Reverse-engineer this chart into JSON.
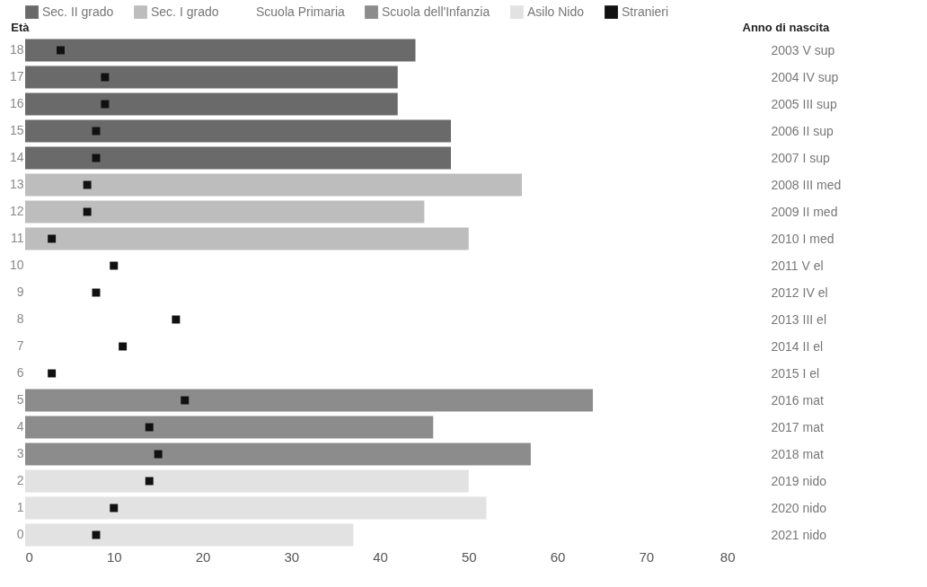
{
  "chart_data": {
    "type": "bar",
    "orientation": "horizontal",
    "ylabel": "Età",
    "y2label": "Anno di nascita",
    "categories": [
      "18",
      "17",
      "16",
      "15",
      "14",
      "13",
      "12",
      "11",
      "10",
      "9",
      "8",
      "7",
      "6",
      "5",
      "4",
      "3",
      "2",
      "1",
      "0"
    ],
    "y2_categories": [
      "2003 V sup",
      "2004 IV sup",
      "2005 III sup",
      "2006 II sup",
      "2007 I sup",
      "2008 III med",
      "2009 II med",
      "2010 I med",
      "2011 V el",
      "2012 IV el",
      "2013 III el",
      "2014 II el",
      "2015 I el",
      "2016 mat",
      "2017 mat",
      "2018 mat",
      "2019 nido",
      "2020 nido",
      "2021 nido"
    ],
    "series": [
      {
        "name": "Sec. II grado",
        "color": "#6a6a6a",
        "values": [
          44,
          42,
          42,
          48,
          48,
          null,
          null,
          null,
          null,
          null,
          null,
          null,
          null,
          null,
          null,
          null,
          null,
          null,
          null
        ]
      },
      {
        "name": "Sec. I grado",
        "color": "#bdbdbd",
        "values": [
          null,
          null,
          null,
          null,
          null,
          56,
          45,
          50,
          null,
          null,
          null,
          null,
          null,
          null,
          null,
          null,
          null,
          null,
          null
        ]
      },
      {
        "name": "Scuola Primaria",
        "values": [
          null,
          null,
          null,
          null,
          null,
          null,
          null,
          null,
          null,
          null,
          null,
          null,
          null,
          null,
          null,
          null,
          null,
          null,
          null
        ]
      },
      {
        "name": "Scuola dell'Infanzia",
        "color": "#8c8c8c",
        "values": [
          null,
          null,
          null,
          null,
          null,
          null,
          null,
          null,
          null,
          null,
          null,
          null,
          null,
          64,
          46,
          57,
          null,
          null,
          null
        ]
      },
      {
        "name": "Asilo Nido",
        "color": "#e2e2e2",
        "values": [
          null,
          null,
          null,
          null,
          null,
          null,
          null,
          null,
          null,
          null,
          null,
          null,
          null,
          null,
          null,
          null,
          50,
          52,
          37
        ]
      },
      {
        "name": "Stranieri",
        "color": "#111111",
        "type": "scatter",
        "values": [
          4,
          9,
          9,
          8,
          8,
          7,
          7,
          3,
          10,
          8,
          17,
          11,
          3,
          18,
          14,
          15,
          14,
          10,
          8
        ]
      }
    ],
    "xlim": [
      0,
      80
    ],
    "xticks": [
      0,
      10,
      20,
      30,
      40,
      50,
      60,
      70,
      80
    ],
    "marker": "square",
    "legend": "top"
  }
}
